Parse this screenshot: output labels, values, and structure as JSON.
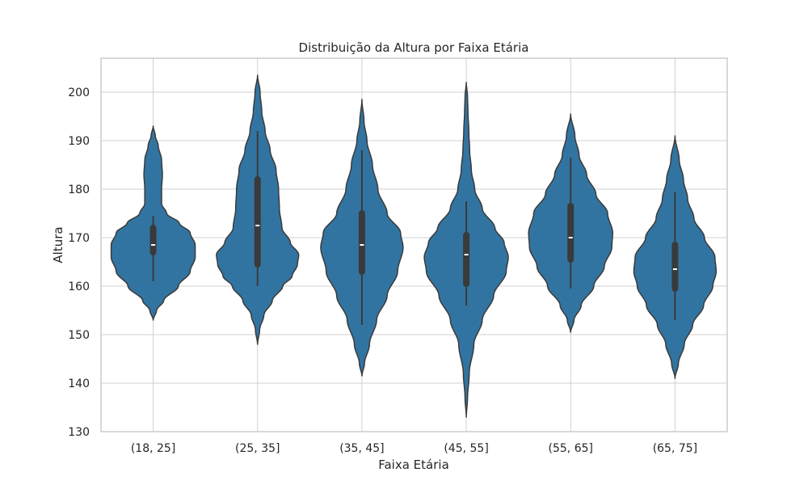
{
  "chart_data": {
    "type": "violin",
    "title": "Distribuição da Altura por Faixa Etária",
    "xlabel": "Faixa Etária",
    "ylabel": "Altura",
    "ylim": [
      130,
      207
    ],
    "yticks": [
      130,
      140,
      150,
      160,
      170,
      180,
      190,
      200
    ],
    "grid": true,
    "colors": {
      "violin": "#3274a1",
      "edge": "#3a3a3a",
      "box": "#3a3a3a",
      "median": "#ffffff",
      "grid": "#d0d0d0",
      "frame": "#cccccc"
    },
    "categories": [
      "(18, 25]",
      "(25, 35]",
      "(35, 45]",
      "(45, 55]",
      "(55, 65]",
      "(65, 75]"
    ],
    "violins": [
      {
        "min": 153,
        "max": 193,
        "whisker_low": 161,
        "q1": 167,
        "median": 168.5,
        "q3": 172,
        "whisker_high": 174.5,
        "width_profile": [
          [
            153,
            0
          ],
          [
            155,
            0.08
          ],
          [
            157,
            0.25
          ],
          [
            160,
            0.6
          ],
          [
            163,
            0.88
          ],
          [
            166,
            1.0
          ],
          [
            168.5,
            1.0
          ],
          [
            171,
            0.88
          ],
          [
            173,
            0.62
          ],
          [
            175,
            0.32
          ],
          [
            177,
            0.2
          ],
          [
            180,
            0.2
          ],
          [
            183,
            0.22
          ],
          [
            186,
            0.2
          ],
          [
            189,
            0.12
          ],
          [
            191,
            0.05
          ],
          [
            193,
            0
          ]
        ]
      },
      {
        "min": 148,
        "max": 203.5,
        "whisker_low": 160,
        "q1": 164.5,
        "median": 172.5,
        "q3": 182,
        "whisker_high": 192,
        "width_profile": [
          [
            148,
            0
          ],
          [
            151,
            0.05
          ],
          [
            154,
            0.15
          ],
          [
            157,
            0.35
          ],
          [
            160,
            0.6
          ],
          [
            162,
            0.82
          ],
          [
            164.5,
            0.95
          ],
          [
            166.5,
            0.98
          ],
          [
            169,
            0.78
          ],
          [
            172,
            0.58
          ],
          [
            176,
            0.52
          ],
          [
            180,
            0.5
          ],
          [
            184,
            0.44
          ],
          [
            188,
            0.3
          ],
          [
            192,
            0.18
          ],
          [
            196,
            0.1
          ],
          [
            200,
            0.06
          ],
          [
            203.5,
            0
          ]
        ]
      },
      {
        "min": 141.5,
        "max": 198.5,
        "whisker_low": 152,
        "q1": 163,
        "median": 168.5,
        "q3": 175,
        "whisker_high": 188,
        "width_profile": [
          [
            141.5,
            0
          ],
          [
            144,
            0.06
          ],
          [
            148,
            0.18
          ],
          [
            153,
            0.35
          ],
          [
            158,
            0.6
          ],
          [
            163,
            0.85
          ],
          [
            168,
            0.98
          ],
          [
            171,
            0.92
          ],
          [
            175,
            0.6
          ],
          [
            180,
            0.38
          ],
          [
            185,
            0.25
          ],
          [
            190,
            0.12
          ],
          [
            194,
            0.05
          ],
          [
            198.5,
            0
          ]
        ]
      },
      {
        "min": 133,
        "max": 202,
        "whisker_low": 156,
        "q1": 160.5,
        "median": 166.5,
        "q3": 170.5,
        "whisker_high": 177.5,
        "width_profile": [
          [
            133,
            0
          ],
          [
            137,
            0.03
          ],
          [
            142,
            0.07
          ],
          [
            148,
            0.18
          ],
          [
            153,
            0.38
          ],
          [
            158,
            0.65
          ],
          [
            163,
            0.95
          ],
          [
            166,
            1.0
          ],
          [
            169,
            0.9
          ],
          [
            172,
            0.68
          ],
          [
            176,
            0.38
          ],
          [
            180,
            0.2
          ],
          [
            184,
            0.12
          ],
          [
            188,
            0.08
          ],
          [
            192,
            0.06
          ],
          [
            196,
            0.04
          ],
          [
            199,
            0.03
          ],
          [
            202,
            0
          ]
        ]
      },
      {
        "min": 150.5,
        "max": 195.5,
        "whisker_low": 159.5,
        "q1": 165.5,
        "median": 170,
        "q3": 176.5,
        "whisker_high": 186.5,
        "width_profile": [
          [
            150.5,
            0
          ],
          [
            153,
            0.08
          ],
          [
            156,
            0.25
          ],
          [
            160,
            0.55
          ],
          [
            164,
            0.8
          ],
          [
            168,
            0.98
          ],
          [
            171,
            1.0
          ],
          [
            175,
            0.88
          ],
          [
            179,
            0.6
          ],
          [
            183,
            0.38
          ],
          [
            187,
            0.2
          ],
          [
            191,
            0.1
          ],
          [
            195.5,
            0
          ]
        ]
      },
      {
        "min": 141,
        "max": 191,
        "whisker_low": 153,
        "q1": 159.5,
        "median": 163.5,
        "q3": 168.5,
        "whisker_high": 179.5,
        "width_profile": [
          [
            141,
            0
          ],
          [
            144,
            0.08
          ],
          [
            148,
            0.22
          ],
          [
            152,
            0.42
          ],
          [
            156,
            0.68
          ],
          [
            160,
            0.9
          ],
          [
            163,
            0.98
          ],
          [
            166,
            0.95
          ],
          [
            170,
            0.7
          ],
          [
            174,
            0.45
          ],
          [
            178,
            0.3
          ],
          [
            182,
            0.2
          ],
          [
            186,
            0.1
          ],
          [
            191,
            0
          ]
        ]
      }
    ]
  }
}
